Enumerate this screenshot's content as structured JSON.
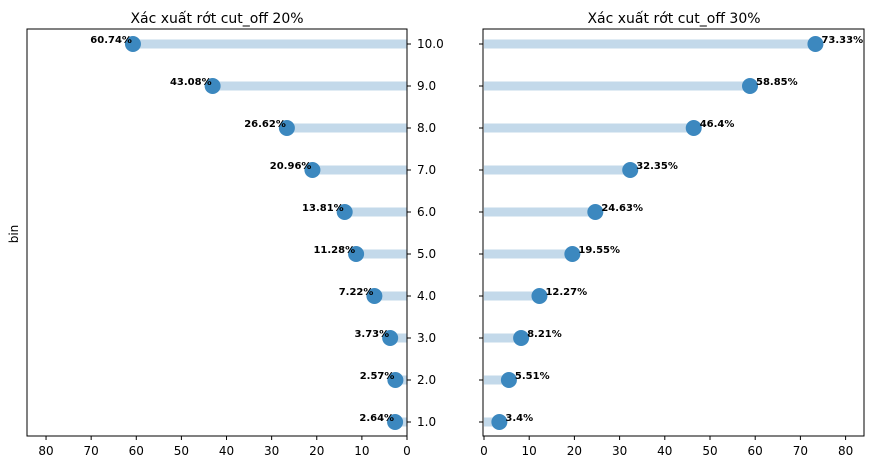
{
  "colors": {
    "stem": "#c3d9ea",
    "dot": "#3c88bf"
  },
  "chart_data": [
    {
      "type": "lollipop",
      "orientation": "horizontal",
      "title": "Xác xuất rớt cut_off 20%",
      "ylabel": "bin",
      "xlim": [
        82,
        0
      ],
      "x_ticks": [
        80,
        70,
        60,
        50,
        40,
        30,
        20,
        10,
        0
      ],
      "y_tick_labels": [
        "1.0",
        "2.0",
        "3.0",
        "4.0",
        "5.0",
        "6.0",
        "7.0",
        "8.0",
        "9.0",
        "10.0"
      ],
      "y_ticks_side": "right",
      "bins": [
        1,
        2,
        3,
        4,
        5,
        6,
        7,
        8,
        9,
        10
      ],
      "values": [
        2.64,
        2.57,
        3.73,
        7.22,
        11.28,
        13.81,
        20.96,
        26.62,
        43.08,
        60.74
      ],
      "labels": [
        "2.64%",
        "2.57%",
        "3.73%",
        "7.22%",
        "11.28%",
        "13.81%",
        "20.96%",
        "26.62%",
        "43.08%",
        "60.74%"
      ]
    },
    {
      "type": "lollipop",
      "orientation": "horizontal",
      "title": "Xác xuất rớt cut_off 30%",
      "xlim": [
        0,
        82
      ],
      "x_ticks": [
        0,
        10,
        20,
        30,
        40,
        50,
        60,
        70,
        80
      ],
      "bins": [
        1,
        2,
        3,
        4,
        5,
        6,
        7,
        8,
        9,
        10
      ],
      "values": [
        3.4,
        5.51,
        8.21,
        12.27,
        19.55,
        24.63,
        32.35,
        46.4,
        58.85,
        73.33
      ],
      "labels": [
        "3.4%",
        "5.51%",
        "8.21%",
        "12.27%",
        "19.55%",
        "24.63%",
        "32.35%",
        "46.4%",
        "58.85%",
        "73.33%"
      ]
    }
  ]
}
